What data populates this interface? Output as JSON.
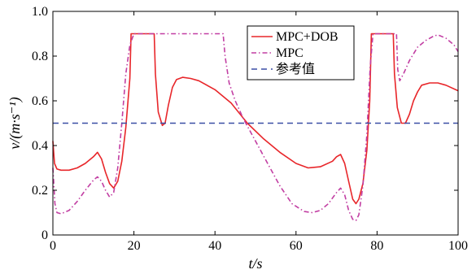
{
  "chart_data": {
    "type": "line",
    "title": "",
    "xlabel": "t/s",
    "ylabel": "v/(m·s⁻¹)",
    "xlim": [
      0,
      100
    ],
    "ylim": [
      0,
      1.0
    ],
    "xticks": [
      "0",
      "20",
      "40",
      "60",
      "80",
      "100"
    ],
    "yticks": [
      "0",
      "0.2",
      "0.4",
      "0.6",
      "0.8",
      "1.0"
    ],
    "grid": false,
    "legend_position": "top-right",
    "series": [
      {
        "name": "MPC+DOB",
        "color": "#e8262a",
        "style": "solid",
        "points": [
          [
            0,
            0.42
          ],
          [
            0.4,
            0.32
          ],
          [
            1,
            0.295
          ],
          [
            2,
            0.29
          ],
          [
            4,
            0.29
          ],
          [
            6,
            0.3
          ],
          [
            8,
            0.32
          ],
          [
            10,
            0.35
          ],
          [
            11,
            0.37
          ],
          [
            12,
            0.34
          ],
          [
            13,
            0.28
          ],
          [
            14,
            0.23
          ],
          [
            15,
            0.21
          ],
          [
            16,
            0.24
          ],
          [
            17,
            0.33
          ],
          [
            18,
            0.48
          ],
          [
            19,
            0.7
          ],
          [
            19.3,
            0.9
          ],
          [
            24.9,
            0.9
          ],
          [
            25,
            0.9
          ],
          [
            25.3,
            0.72
          ],
          [
            26,
            0.55
          ],
          [
            27,
            0.49
          ],
          [
            27.7,
            0.5
          ],
          [
            28.5,
            0.58
          ],
          [
            29.5,
            0.66
          ],
          [
            30.5,
            0.695
          ],
          [
            32,
            0.705
          ],
          [
            34,
            0.7
          ],
          [
            36,
            0.69
          ],
          [
            40,
            0.65
          ],
          [
            44,
            0.59
          ],
          [
            48,
            0.5
          ],
          [
            52,
            0.43
          ],
          [
            56,
            0.37
          ],
          [
            60,
            0.32
          ],
          [
            63,
            0.3
          ],
          [
            66,
            0.305
          ],
          [
            69,
            0.33
          ],
          [
            70,
            0.35
          ],
          [
            71,
            0.36
          ],
          [
            72,
            0.32
          ],
          [
            73,
            0.24
          ],
          [
            74,
            0.16
          ],
          [
            74.8,
            0.14
          ],
          [
            75.5,
            0.16
          ],
          [
            76.5,
            0.23
          ],
          [
            77.5,
            0.38
          ],
          [
            78.2,
            0.6
          ],
          [
            78.6,
            0.9
          ],
          [
            84,
            0.9
          ],
          [
            84.3,
            0.72
          ],
          [
            85,
            0.57
          ],
          [
            86,
            0.5
          ],
          [
            87,
            0.5
          ],
          [
            88,
            0.54
          ],
          [
            89,
            0.6
          ],
          [
            90,
            0.64
          ],
          [
            91,
            0.67
          ],
          [
            93,
            0.68
          ],
          [
            95,
            0.68
          ],
          [
            97,
            0.67
          ],
          [
            100,
            0.645
          ]
        ]
      },
      {
        "name": "MPC",
        "color": "#c23fa3",
        "style": "dashdot",
        "points": [
          [
            0,
            0.3
          ],
          [
            0.5,
            0.14
          ],
          [
            1,
            0.1
          ],
          [
            2,
            0.095
          ],
          [
            4,
            0.11
          ],
          [
            6,
            0.15
          ],
          [
            8,
            0.2
          ],
          [
            10,
            0.245
          ],
          [
            11,
            0.26
          ],
          [
            12,
            0.24
          ],
          [
            13,
            0.2
          ],
          [
            14,
            0.17
          ],
          [
            15,
            0.19
          ],
          [
            16,
            0.3
          ],
          [
            17,
            0.5
          ],
          [
            18,
            0.72
          ],
          [
            19,
            0.85
          ],
          [
            20,
            0.9
          ],
          [
            42,
            0.9
          ],
          [
            42.5,
            0.8
          ],
          [
            43.5,
            0.68
          ],
          [
            45,
            0.6
          ],
          [
            47,
            0.52
          ],
          [
            50,
            0.42
          ],
          [
            53,
            0.32
          ],
          [
            56,
            0.22
          ],
          [
            59,
            0.14
          ],
          [
            62,
            0.105
          ],
          [
            64,
            0.1
          ],
          [
            66,
            0.11
          ],
          [
            68,
            0.14
          ],
          [
            70,
            0.19
          ],
          [
            71,
            0.21
          ],
          [
            72,
            0.18
          ],
          [
            73,
            0.11
          ],
          [
            74,
            0.07
          ],
          [
            74.8,
            0.065
          ],
          [
            75.5,
            0.09
          ],
          [
            76.5,
            0.22
          ],
          [
            77.5,
            0.45
          ],
          [
            78.3,
            0.75
          ],
          [
            79,
            0.9
          ],
          [
            84.8,
            0.9
          ],
          [
            85.1,
            0.74
          ],
          [
            85.6,
            0.69
          ],
          [
            86.5,
            0.72
          ],
          [
            88,
            0.78
          ],
          [
            90,
            0.84
          ],
          [
            92,
            0.87
          ],
          [
            94,
            0.89
          ],
          [
            95,
            0.895
          ],
          [
            97,
            0.88
          ],
          [
            99,
            0.85
          ],
          [
            100,
            0.82
          ]
        ]
      },
      {
        "name": "参考值",
        "color": "#3b4fa5",
        "style": "dashed",
        "points": [
          [
            0,
            0.5
          ],
          [
            100,
            0.5
          ]
        ]
      }
    ]
  }
}
